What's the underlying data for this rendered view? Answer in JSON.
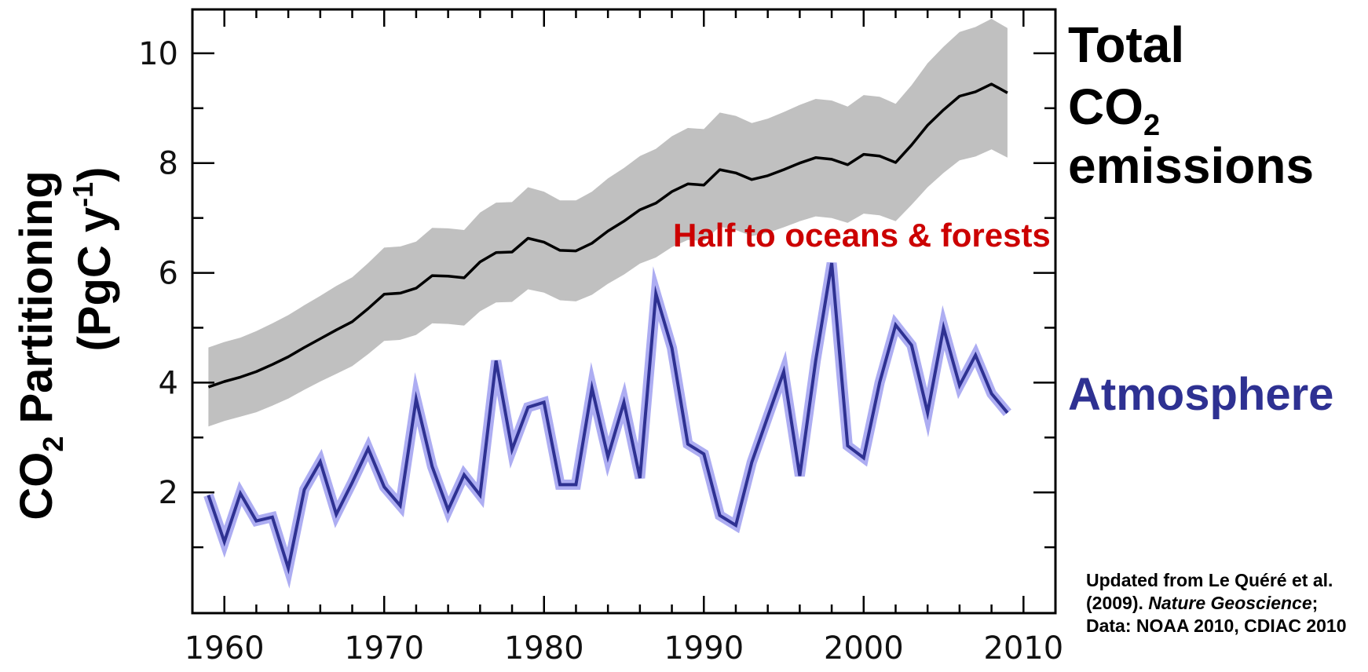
{
  "colors": {
    "total_line": "#000000",
    "total_band": "#c0c0c0",
    "atmosphere_line": "#2e3192",
    "atmosphere_band": "#9f9ff0",
    "annotation": "#cc0000"
  },
  "labels": {
    "y_axis_line1_pre": "CO",
    "y_axis_line1_sub": "2",
    "y_axis_line1_post": " Partitioning",
    "y_axis_line2_pre": "(PgC y",
    "y_axis_line2_sup": "-1",
    "y_axis_line2_post": ")",
    "total_line1": "Total",
    "total_line2_pre": "CO",
    "total_line2_sub": "2",
    "total_line3": "emissions",
    "atmosphere": "Atmosphere",
    "annotation": "Half to oceans & forests",
    "source_part1": "Updated from Le Quéré et al. (2009). ",
    "source_italic": "Nature Geoscience",
    "source_part2": "; Data: NOAA 2010, CDIAC 2010"
  },
  "chart_data": {
    "type": "line",
    "xlim": [
      1958,
      2012
    ],
    "ylim": [
      -0.2,
      10.8
    ],
    "x_ticks": [
      1960,
      1970,
      1980,
      1990,
      2000,
      2010
    ],
    "y_ticks": [
      2,
      4,
      6,
      8,
      10
    ],
    "x": [
      1959,
      1960,
      1961,
      1962,
      1963,
      1964,
      1965,
      1966,
      1967,
      1968,
      1969,
      1970,
      1971,
      1972,
      1973,
      1974,
      1975,
      1976,
      1977,
      1978,
      1979,
      1980,
      1981,
      1982,
      1983,
      1984,
      1985,
      1986,
      1987,
      1988,
      1989,
      1990,
      1991,
      1992,
      1993,
      1994,
      1995,
      1996,
      1997,
      1998,
      1999,
      2000,
      2001,
      2002,
      2003,
      2004,
      2005,
      2006,
      2007,
      2008,
      2009
    ],
    "series": [
      {
        "name": "Total CO2 emissions",
        "values": [
          3.92,
          4.02,
          4.1,
          4.2,
          4.33,
          4.47,
          4.64,
          4.8,
          4.96,
          5.11,
          5.35,
          5.61,
          5.63,
          5.72,
          5.95,
          5.94,
          5.91,
          6.2,
          6.37,
          6.38,
          6.63,
          6.56,
          6.41,
          6.4,
          6.54,
          6.76,
          6.94,
          7.15,
          7.27,
          7.48,
          7.62,
          7.6,
          7.88,
          7.82,
          7.7,
          7.77,
          7.88,
          8.0,
          8.1,
          8.07,
          7.97,
          8.16,
          8.13,
          8.01,
          8.33,
          8.69,
          8.97,
          9.22,
          9.3,
          9.44,
          9.28
        ],
        "band_lower": [
          3.2,
          3.3,
          3.38,
          3.46,
          3.58,
          3.71,
          3.87,
          4.02,
          4.16,
          4.3,
          4.52,
          4.76,
          4.78,
          4.87,
          5.08,
          5.07,
          5.04,
          5.3,
          5.46,
          5.47,
          5.7,
          5.64,
          5.5,
          5.48,
          5.6,
          5.8,
          5.97,
          6.17,
          6.28,
          6.47,
          6.6,
          6.58,
          6.84,
          6.78,
          6.67,
          6.73,
          6.83,
          6.94,
          7.03,
          7.0,
          6.91,
          7.08,
          7.05,
          6.94,
          7.24,
          7.56,
          7.82,
          8.05,
          8.12,
          8.25,
          8.1
        ],
        "band_upper": [
          4.64,
          4.74,
          4.82,
          4.94,
          5.08,
          5.23,
          5.41,
          5.58,
          5.76,
          5.92,
          6.18,
          6.46,
          6.48,
          6.57,
          6.82,
          6.81,
          6.78,
          7.1,
          7.28,
          7.29,
          7.56,
          7.48,
          7.32,
          7.32,
          7.48,
          7.72,
          7.91,
          8.13,
          8.26,
          8.49,
          8.64,
          8.62,
          8.92,
          8.86,
          8.73,
          8.81,
          8.93,
          9.06,
          9.17,
          9.14,
          9.03,
          9.24,
          9.21,
          9.08,
          9.42,
          9.82,
          10.12,
          10.39,
          10.48,
          10.63,
          10.46
        ]
      },
      {
        "name": "Atmosphere",
        "values": [
          1.95,
          1.1,
          1.98,
          1.48,
          1.55,
          0.62,
          2.05,
          2.56,
          1.6,
          2.18,
          2.8,
          2.1,
          1.76,
          3.7,
          2.47,
          1.68,
          2.32,
          1.95,
          4.4,
          2.78,
          3.55,
          3.64,
          2.14,
          2.14,
          3.9,
          2.65,
          3.64,
          2.26,
          5.62,
          4.63,
          2.88,
          2.7,
          1.58,
          1.4,
          2.55,
          3.38,
          4.2,
          2.3,
          4.4,
          6.18,
          2.85,
          2.63,
          4.0,
          5.05,
          4.68,
          3.45,
          5.0,
          3.95,
          4.5,
          3.8,
          3.45
        ]
      }
    ]
  }
}
